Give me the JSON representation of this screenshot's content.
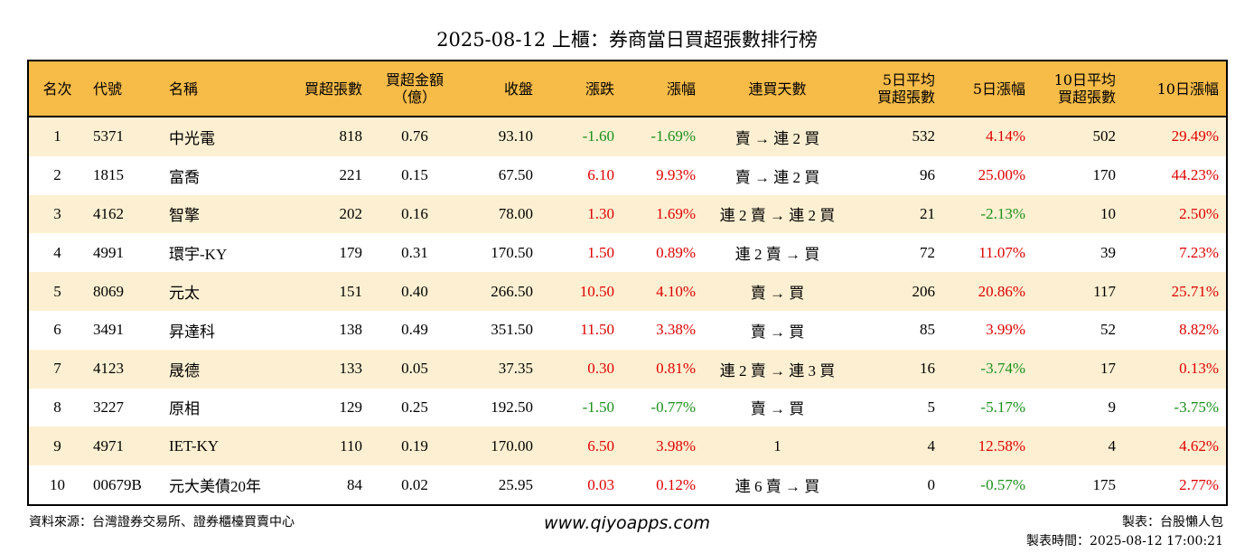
{
  "title": "2025-08-12 上櫃：券商當日買超張數排行榜",
  "headers": {
    "rank": "名次",
    "code": "代號",
    "name": "名稱",
    "net_buy_lots": "買超張數",
    "net_buy_amount_l1": "買超金額",
    "net_buy_amount_l2": "（億）",
    "close": "收盤",
    "change": "漲跌",
    "change_pct": "漲幅",
    "consecutive_days": "連買天數",
    "avg5_l1": "5日平均",
    "avg5_l2": "買超張數",
    "pct5": "5日漲幅",
    "avg10_l1": "10日平均",
    "avg10_l2": "買超張數",
    "pct10": "10日漲幅"
  },
  "rows": [
    {
      "rank": "1",
      "code": "5371",
      "name": "中光電",
      "lots": "818",
      "amount": "0.76",
      "close": "93.10",
      "change": "-1.60",
      "change_pct": "-1.69%",
      "days": "賣 → 連 2 買",
      "avg5": "532",
      "pct5": "4.14%",
      "avg10": "502",
      "pct10": "29.49%"
    },
    {
      "rank": "2",
      "code": "1815",
      "name": "富喬",
      "lots": "221",
      "amount": "0.15",
      "close": "67.50",
      "change": "6.10",
      "change_pct": "9.93%",
      "days": "賣 → 連 2 買",
      "avg5": "96",
      "pct5": "25.00%",
      "avg10": "170",
      "pct10": "44.23%"
    },
    {
      "rank": "3",
      "code": "4162",
      "name": "智擎",
      "lots": "202",
      "amount": "0.16",
      "close": "78.00",
      "change": "1.30",
      "change_pct": "1.69%",
      "days": "連 2 賣 → 連 2 買",
      "avg5": "21",
      "pct5": "-2.13%",
      "avg10": "10",
      "pct10": "2.50%"
    },
    {
      "rank": "4",
      "code": "4991",
      "name": "環宇-KY",
      "lots": "179",
      "amount": "0.31",
      "close": "170.50",
      "change": "1.50",
      "change_pct": "0.89%",
      "days": "連 2 賣 → 買",
      "avg5": "72",
      "pct5": "11.07%",
      "avg10": "39",
      "pct10": "7.23%"
    },
    {
      "rank": "5",
      "code": "8069",
      "name": "元太",
      "lots": "151",
      "amount": "0.40",
      "close": "266.50",
      "change": "10.50",
      "change_pct": "4.10%",
      "days": "賣 → 買",
      "avg5": "206",
      "pct5": "20.86%",
      "avg10": "117",
      "pct10": "25.71%"
    },
    {
      "rank": "6",
      "code": "3491",
      "name": "昇達科",
      "lots": "138",
      "amount": "0.49",
      "close": "351.50",
      "change": "11.50",
      "change_pct": "3.38%",
      "days": "賣 → 買",
      "avg5": "85",
      "pct5": "3.99%",
      "avg10": "52",
      "pct10": "8.82%"
    },
    {
      "rank": "7",
      "code": "4123",
      "name": "晟德",
      "lots": "133",
      "amount": "0.05",
      "close": "37.35",
      "change": "0.30",
      "change_pct": "0.81%",
      "days": "連 2 賣 → 連 3 買",
      "avg5": "16",
      "pct5": "-3.74%",
      "avg10": "17",
      "pct10": "0.13%"
    },
    {
      "rank": "8",
      "code": "3227",
      "name": "原相",
      "lots": "129",
      "amount": "0.25",
      "close": "192.50",
      "change": "-1.50",
      "change_pct": "-0.77%",
      "days": "賣 → 買",
      "avg5": "5",
      "pct5": "-5.17%",
      "avg10": "9",
      "pct10": "-3.75%"
    },
    {
      "rank": "9",
      "code": "4971",
      "name": "IET-KY",
      "lots": "110",
      "amount": "0.19",
      "close": "170.00",
      "change": "6.50",
      "change_pct": "3.98%",
      "days": "1",
      "avg5": "4",
      "pct5": "12.58%",
      "avg10": "4",
      "pct10": "4.62%"
    },
    {
      "rank": "10",
      "code": "00679B",
      "name": "元大美債20年",
      "lots": "84",
      "amount": "0.02",
      "close": "25.95",
      "change": "0.03",
      "change_pct": "0.12%",
      "days": "連 6 賣 → 買",
      "avg5": "0",
      "pct5": "-0.57%",
      "avg10": "175",
      "pct10": "2.77%"
    }
  ],
  "footer": {
    "source": "資料來源：台灣證券交易所、證券櫃檯買賣中心",
    "website": "www.qiyoapps.com",
    "author": "製表：台股懶人包",
    "made_time": "製表時間：2025-08-12 17:00:21"
  },
  "colors": {
    "header_bg": "#f7bb48",
    "odd_row_bg": "#fdf0d2",
    "up": "#e00000",
    "down": "#1a8f1a"
  }
}
